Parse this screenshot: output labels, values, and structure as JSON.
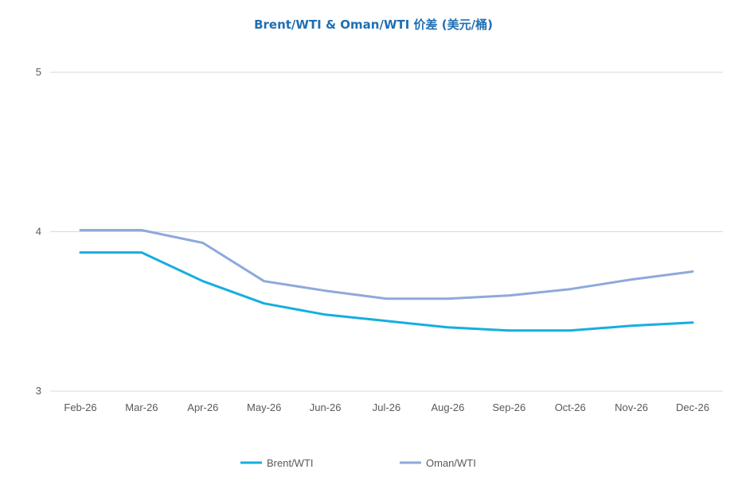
{
  "chart_data": {
    "type": "line",
    "title": "Brent/WTI & Oman/WTI 价差 (美元/桶)",
    "title_color": "#1F6FB2",
    "categories": [
      "Feb-26",
      "Mar-26",
      "Apr-26",
      "May-26",
      "Jun-26",
      "Jul-26",
      "Aug-26",
      "Sep-26",
      "Oct-26",
      "Nov-26",
      "Dec-26"
    ],
    "y_ticks": [
      "3",
      "4",
      "5"
    ],
    "ylim": [
      3,
      5
    ],
    "grid": true,
    "legend_position": "bottom",
    "series": [
      {
        "name": "Brent/WTI",
        "color": "#16AEE0",
        "values": [
          3.87,
          3.87,
          3.69,
          3.55,
          3.48,
          3.44,
          3.4,
          3.38,
          3.38,
          3.41,
          3.43
        ]
      },
      {
        "name": "Oman/WTI",
        "color": "#8EA9DB",
        "values": [
          4.01,
          4.01,
          3.93,
          3.69,
          3.63,
          3.58,
          3.58,
          3.6,
          3.64,
          3.7,
          3.75
        ]
      }
    ]
  }
}
